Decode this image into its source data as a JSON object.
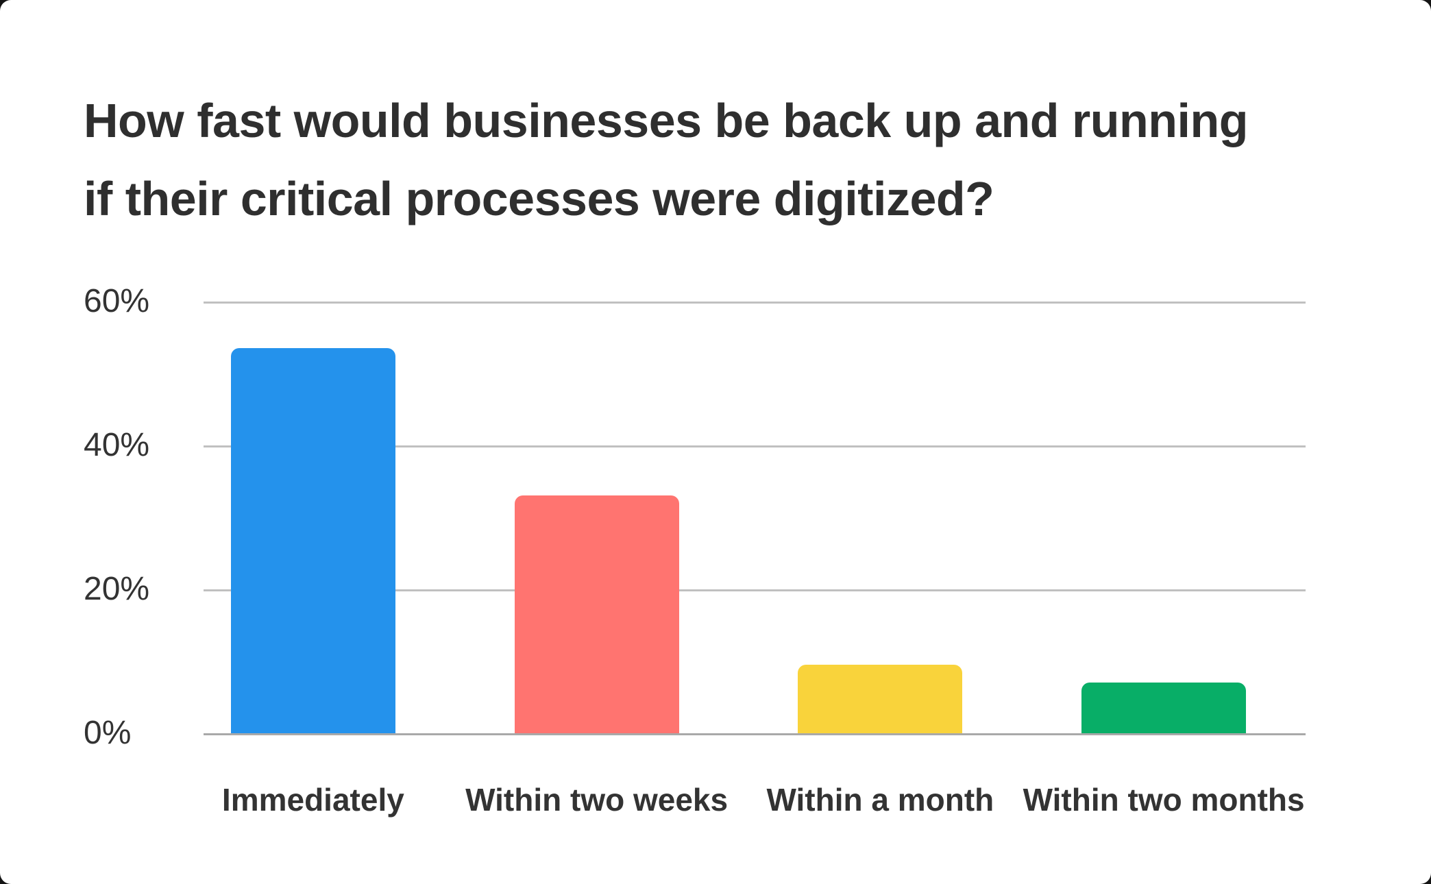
{
  "card": {
    "background": "#ffffff"
  },
  "chart_data": {
    "type": "bar",
    "title": "How fast would businesses be back up and running if their critical processes were digitized?",
    "title_lines": [
      "How fast would businesses be back up and running",
      "if their critical processes were digitized?"
    ],
    "categories": [
      "Immediately",
      "Within two weeks",
      "Within a month",
      "Within two months"
    ],
    "values": [
      53.5,
      33,
      9.5,
      7
    ],
    "unit": "%",
    "bar_colors": [
      "#2492EC",
      "#FF7470",
      "#F9D33B",
      "#08AE67"
    ],
    "ylim": [
      0,
      60
    ],
    "yticks": [
      {
        "value": 60,
        "label": "60%"
      },
      {
        "value": 40,
        "label": "40%"
      },
      {
        "value": 20,
        "label": "20%"
      },
      {
        "value": 0,
        "label": "0%"
      }
    ],
    "grid": true,
    "legend": false,
    "xlabel": "",
    "ylabel": "",
    "gridline_color": "#c0c0c0",
    "zeroline_color": "#a9a9a9",
    "title_color": "#2f2f2f",
    "text_color": "#333333"
  }
}
